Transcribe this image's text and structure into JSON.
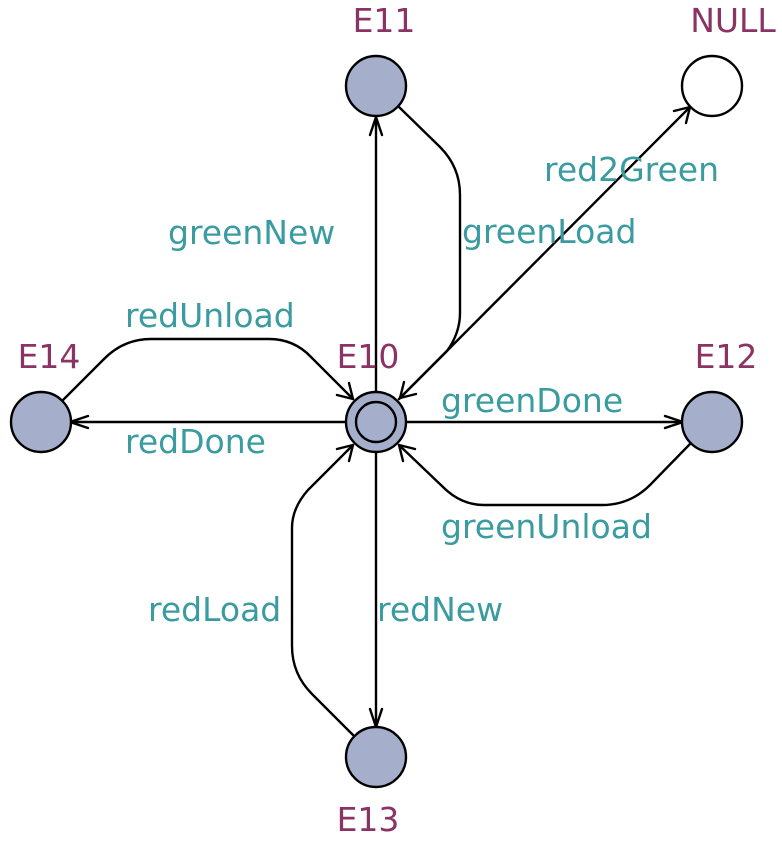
{
  "colors": {
    "state_label": "#8B3464",
    "transition_label": "#3A9CA0",
    "state_fill": "#A5AECB",
    "null_fill": "#FFFFFF",
    "stroke": "#000000"
  },
  "states": {
    "E10": {
      "label": "E10",
      "initial": true
    },
    "E11": {
      "label": "E11",
      "initial": false
    },
    "E12": {
      "label": "E12",
      "initial": false
    },
    "E13": {
      "label": "E13",
      "initial": false
    },
    "E14": {
      "label": "E14",
      "initial": false
    },
    "NULL": {
      "label": "NULL",
      "initial": false
    }
  },
  "transitions": [
    {
      "id": "greenNew",
      "label": "greenNew",
      "from": "E10",
      "to": "E11"
    },
    {
      "id": "greenLoad",
      "label": "greenLoad",
      "from": "E11",
      "to": "E10"
    },
    {
      "id": "red2Green",
      "label": "red2Green",
      "from": "E10",
      "to": "NULL"
    },
    {
      "id": "greenDone",
      "label": "greenDone",
      "from": "E10",
      "to": "E12"
    },
    {
      "id": "greenUnload",
      "label": "greenUnload",
      "from": "E12",
      "to": "E10"
    },
    {
      "id": "redNew",
      "label": "redNew",
      "from": "E10",
      "to": "E13"
    },
    {
      "id": "redLoad",
      "label": "redLoad",
      "from": "E13",
      "to": "E10"
    },
    {
      "id": "redDone",
      "label": "redDone",
      "from": "E10",
      "to": "E14"
    },
    {
      "id": "redUnload",
      "label": "redUnload",
      "from": "E14",
      "to": "E10"
    }
  ]
}
